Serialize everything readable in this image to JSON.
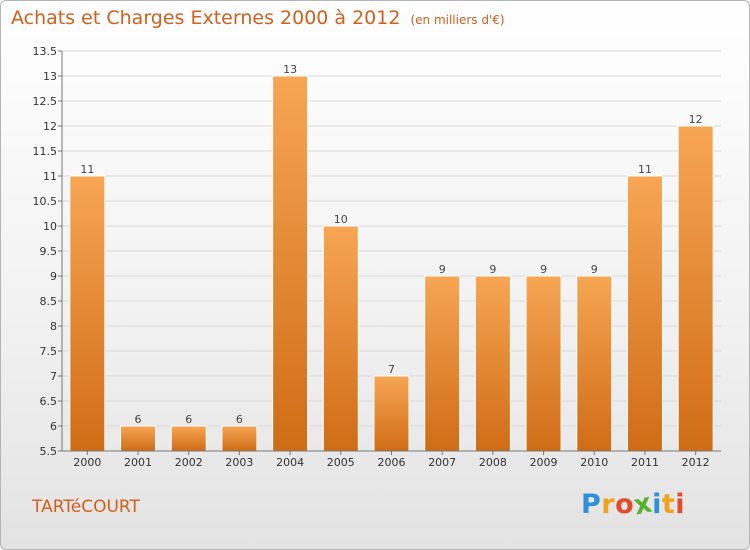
{
  "chart_data": {
    "type": "bar",
    "title": "Achats et Charges Externes 2000 à 2012",
    "subtitle": "(en milliers d'€)",
    "categories": [
      "2000",
      "2001",
      "2002",
      "2003",
      "2004",
      "2005",
      "2006",
      "2007",
      "2008",
      "2009",
      "2010",
      "2011",
      "2012"
    ],
    "values": [
      11,
      6,
      6,
      6,
      13,
      10,
      7,
      9,
      9,
      9,
      9,
      11,
      12
    ],
    "value_labels": [
      "11",
      "6",
      "6",
      "6",
      "13",
      "10",
      "7",
      "9",
      "9",
      "9",
      "9",
      "11",
      "12"
    ],
    "ylim": [
      5.5,
      13.5
    ],
    "yticks": [
      "5.5",
      "6",
      "6.5",
      "7",
      "7.5",
      "8",
      "8.5",
      "9",
      "9.5",
      "10",
      "10.5",
      "11",
      "11.5",
      "12",
      "12.5",
      "13",
      "13.5"
    ],
    "grid": true,
    "bar_color_top": "#f7a654",
    "bar_color_bottom": "#d06c16"
  },
  "commune": "TARTéCOURT",
  "logo": {
    "letters": [
      "P",
      "r",
      "o",
      "x",
      "i",
      "t",
      "i"
    ],
    "colors": [
      "#2f8fd8",
      "#f0a21a",
      "#e44b2a",
      "#5ab031",
      "#2f8fd8",
      "#f0a21a",
      "#e44b2a"
    ]
  }
}
